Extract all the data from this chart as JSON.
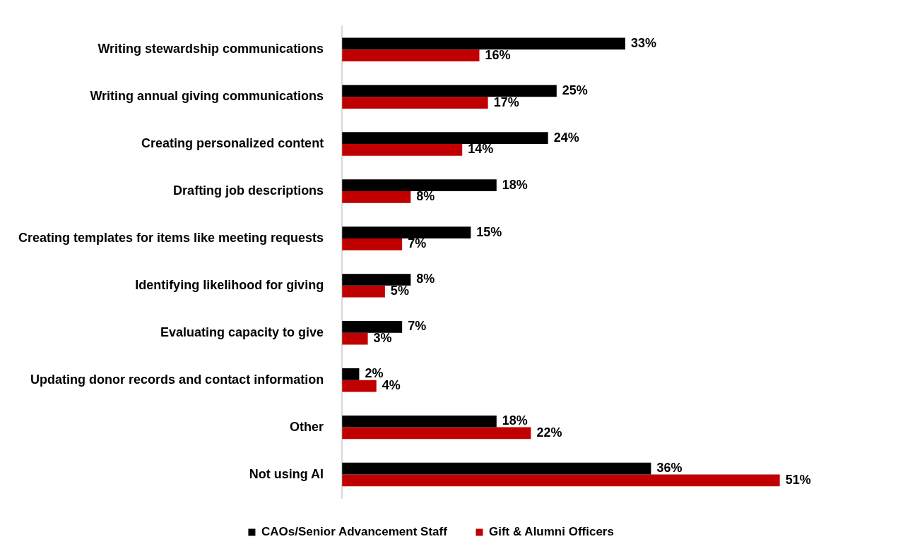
{
  "chart_data": {
    "type": "bar",
    "orientation": "horizontal",
    "categories": [
      "Writing stewardship communications",
      "Writing annual giving communications",
      "Creating personalized content",
      "Drafting job descriptions",
      "Creating templates for items like meeting requests",
      "Identifying likelihood for giving",
      "Evaluating capacity to give",
      "Updating donor records and contact information",
      "Other",
      "Not using AI"
    ],
    "series": [
      {
        "name": "CAOs/Senior Advancement Staff",
        "color": "#000000",
        "values": [
          33,
          25,
          24,
          18,
          15,
          8,
          7,
          2,
          18,
          36
        ],
        "value_labels": [
          "33%",
          "25%",
          "24%",
          "18%",
          "15%",
          "8%",
          "7%",
          "2%",
          "18%",
          "36%"
        ]
      },
      {
        "name": "Gift & Alumni Officers",
        "color": "#c00000",
        "values": [
          16,
          17,
          14,
          8,
          7,
          5,
          3,
          4,
          22,
          51
        ],
        "value_labels": [
          "16%",
          "17%",
          "14%",
          "8%",
          "7%",
          "5%",
          "3%",
          "4%",
          "22%",
          "51%"
        ]
      }
    ],
    "tick_labels": "y",
    "grid": false,
    "legend": "bottom"
  }
}
